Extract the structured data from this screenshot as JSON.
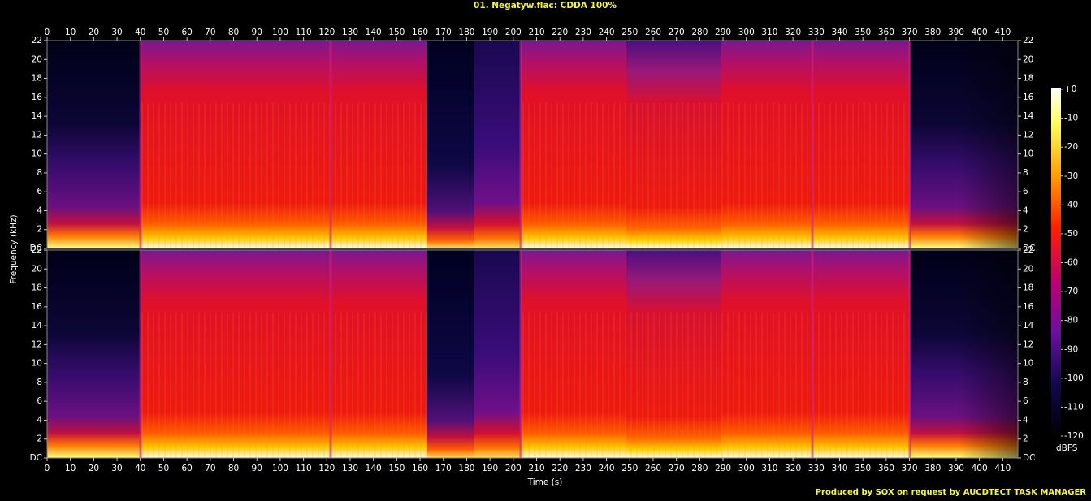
{
  "chart_data": {
    "type": "spectrogram",
    "title": "01. Negatyw.flac: CDDA 100%",
    "xlabel": "Time (s)",
    "ylabel": "Frequency (kHz)",
    "footer": "Produced by SOX on request by AUCDTECT TASK MANAGER",
    "channels": 2,
    "xlim": [
      0,
      416.5
    ],
    "xticks": [
      0,
      10,
      20,
      30,
      40,
      50,
      60,
      70,
      80,
      90,
      100,
      110,
      120,
      130,
      140,
      150,
      160,
      170,
      180,
      190,
      200,
      210,
      220,
      230,
      240,
      250,
      260,
      270,
      280,
      290,
      300,
      310,
      320,
      330,
      340,
      350,
      360,
      370,
      380,
      390,
      400,
      410
    ],
    "ylim": [
      0,
      22
    ],
    "yticks": [
      {
        "value": 0,
        "label": "DC"
      },
      2,
      4,
      6,
      8,
      10,
      12,
      14,
      16,
      18,
      20,
      22
    ],
    "colorbar": {
      "label": "dBFS",
      "lim": [
        -120,
        0
      ],
      "ticks": [
        {
          "value": 0,
          "label": "+0"
        },
        -10,
        -20,
        -30,
        -40,
        -50,
        -60,
        -70,
        -80,
        -90,
        -100,
        -110,
        -120
      ]
    }
  }
}
